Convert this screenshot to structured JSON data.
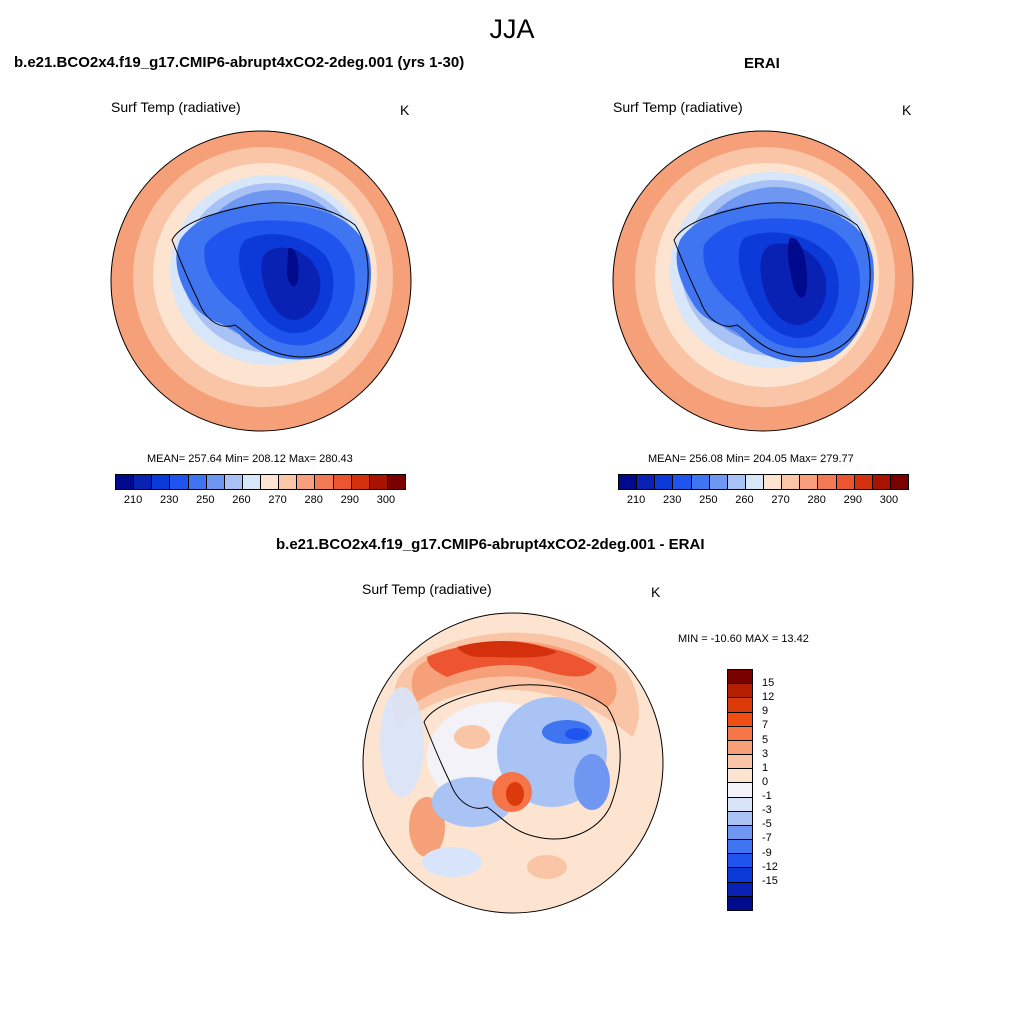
{
  "season": "JJA",
  "units": "K",
  "panels": [
    {
      "title": "b.e21.BCO2x4.f19_g17.CMIP6-abrupt4xCO2-2deg.001 (yrs 1-30)",
      "variable": "Surf Temp (radiative)",
      "units": "K",
      "stats": "MEAN= 257.64  Min= 208.12  Max= 280.43"
    },
    {
      "title": "ERAI",
      "variable": "Surf Temp (radiative)",
      "units": "K",
      "stats": "MEAN= 256.08  Min= 204.05  Max= 279.77"
    },
    {
      "title": "b.e21.BCO2x4.f19_g17.CMIP6-abrupt4xCO2-2deg.001 - ERAI",
      "variable": "Surf Temp (radiative)",
      "units": "K",
      "stats": "MIN = -10.60 MAX =  13.42"
    }
  ],
  "abs_colorbar": {
    "ticks": [
      "210",
      "230",
      "250",
      "260",
      "270",
      "280",
      "290",
      "300"
    ],
    "colors": [
      "#000a8c",
      "#0a22b4",
      "#0c3ad8",
      "#1f55ee",
      "#3f75f0",
      "#6f97f2",
      "#a8c2f5",
      "#d8e6fa",
      "#fde4d0",
      "#fbc6a8",
      "#f8a07e",
      "#f27a55",
      "#ec5530",
      "#d4300e",
      "#a81300",
      "#7a0000"
    ]
  },
  "diff_colorbar": {
    "ticks": [
      "15",
      "12",
      "9",
      "7",
      "5",
      "3",
      "1",
      "0",
      "-1",
      "-3",
      "-5",
      "-7",
      "-9",
      "-12",
      "-15"
    ],
    "colors": [
      "#7a0000",
      "#b31f00",
      "#dd3a0c",
      "#f24d12",
      "#f57548",
      "#f6a079",
      "#f9c5a6",
      "#fde4d0",
      "#f2f2f8",
      "#d8e4fa",
      "#a9c3f5",
      "#6f97f2",
      "#3f75f0",
      "#1f55ee",
      "#0c3ad8",
      "#0a22b4",
      "#000a8c"
    ]
  }
}
